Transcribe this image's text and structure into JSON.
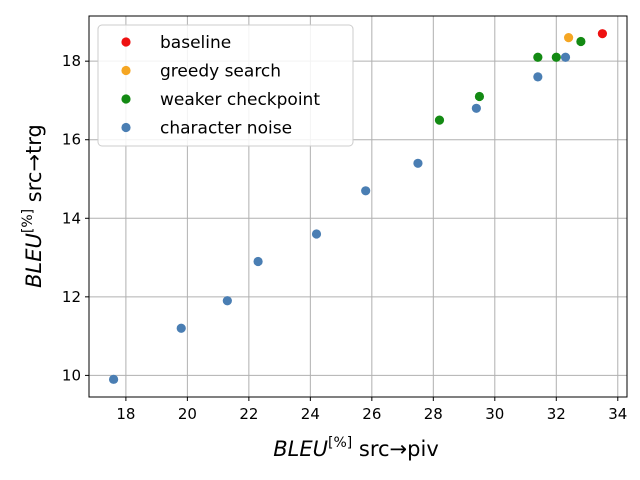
{
  "chart_data": {
    "type": "scatter",
    "xlabel": {
      "main": "BLEU",
      "superscript": "[%]",
      "suffix": " src→piv"
    },
    "ylabel": {
      "main": "BLEU",
      "superscript": "[%]",
      "suffix": " src→trg"
    },
    "xlim": [
      16.8,
      34.3
    ],
    "ylim": [
      9.45,
      19.15
    ],
    "xticks": [
      18,
      20,
      22,
      24,
      26,
      28,
      30,
      32,
      34
    ],
    "yticks": [
      10,
      12,
      14,
      16,
      18
    ],
    "grid": true,
    "legend_position": "top-left",
    "series": [
      {
        "name": "baseline",
        "color": "#ee1111",
        "points": [
          [
            33.5,
            18.7
          ]
        ]
      },
      {
        "name": "greedy search",
        "color": "#f5a623",
        "points": [
          [
            32.4,
            18.6
          ]
        ]
      },
      {
        "name": "weaker checkpoint",
        "color": "#138a13",
        "points": [
          [
            28.2,
            16.5
          ],
          [
            29.5,
            17.1
          ],
          [
            31.4,
            18.1
          ],
          [
            32.0,
            18.1
          ],
          [
            32.8,
            18.5
          ]
        ]
      },
      {
        "name": "character noise",
        "color": "#4a7eb3",
        "points": [
          [
            17.6,
            9.9
          ],
          [
            19.8,
            11.2
          ],
          [
            21.3,
            11.9
          ],
          [
            22.3,
            12.9
          ],
          [
            24.2,
            13.6
          ],
          [
            25.8,
            14.7
          ],
          [
            27.5,
            15.4
          ],
          [
            29.4,
            16.8
          ],
          [
            31.4,
            17.6
          ],
          [
            32.3,
            18.1
          ]
        ]
      }
    ]
  }
}
